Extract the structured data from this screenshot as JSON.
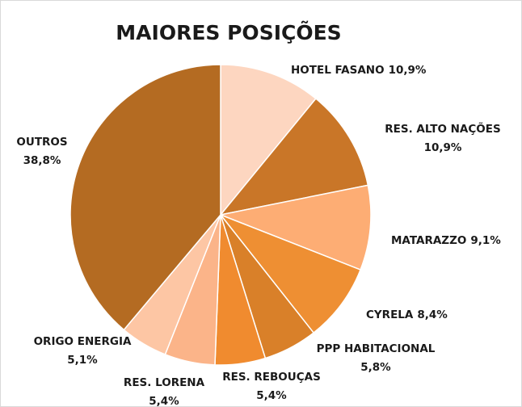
{
  "chart_data": {
    "type": "pie",
    "title": "MAIORES POSIÇÕES",
    "categories": [
      "HOTEL FASANO",
      "RES. ALTO NAÇÕES",
      "MATARAZZO",
      "CYRELA",
      "PPP HABITACIONAL",
      "RES. REBOUÇAS",
      "RES. LORENA",
      "ORIGO ENERGIA",
      "OUTROS"
    ],
    "values": [
      10.9,
      10.9,
      9.1,
      8.4,
      5.8,
      5.4,
      5.4,
      5.1,
      38.8
    ],
    "value_labels": [
      "10,9%",
      "10,9%",
      "9,1%",
      "8,4%",
      "5,8%",
      "5,4%",
      "5,4%",
      "5,1%",
      "38,8%"
    ],
    "colors": [
      "#fdd6c0",
      "#c97628",
      "#fdad74",
      "#ee8f33",
      "#d98029",
      "#f08b2f",
      "#fbb489",
      "#fdc6a4",
      "#b46b22"
    ]
  }
}
